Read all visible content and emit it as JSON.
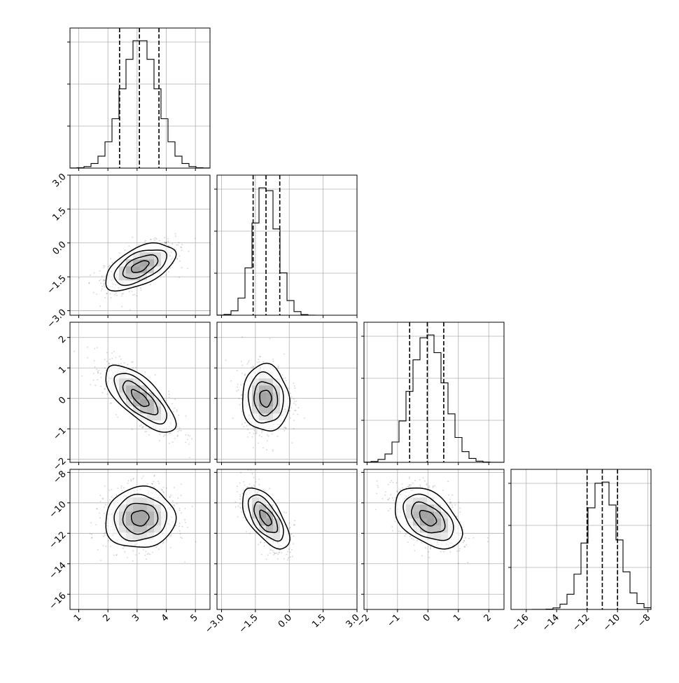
{
  "chart_data": {
    "type": "corner",
    "grid": true,
    "dimensions": [
      {
        "range": [
          0.7,
          5.5
        ],
        "ticks": [
          1,
          2,
          3,
          4,
          5
        ],
        "tick_labels": [
          "1",
          "2",
          "3",
          "4",
          "5"
        ],
        "mean": 3.1,
        "sd": 0.6,
        "quantiles": [
          2.4,
          3.08,
          3.75
        ]
      },
      {
        "range": [
          -3.2,
          3.0
        ],
        "ticks": [
          -3.0,
          -1.5,
          0.0,
          1.5,
          3.0
        ],
        "tick_labels": [
          "−3.0",
          "−1.5",
          "0.0",
          "1.5",
          "3.0"
        ],
        "mean": -1.05,
        "sd": 0.52,
        "quantiles": [
          -1.6,
          -1.03,
          -0.42
        ]
      },
      {
        "range": [
          -2.1,
          2.5
        ],
        "ticks": [
          -2,
          -1,
          0,
          1,
          2
        ],
        "tick_labels": [
          "−2",
          "−1",
          "0",
          "1",
          "2"
        ],
        "mean": 0.0,
        "sd": 0.55,
        "quantiles": [
          -0.6,
          -0.02,
          0.52
        ]
      },
      {
        "range": [
          -17,
          -7.8
        ],
        "ticks": [
          -16,
          -14,
          -12,
          -10,
          -8
        ],
        "tick_labels": [
          "−16",
          "−14",
          "−12",
          "−10",
          "−8"
        ],
        "mean": -11.0,
        "sd": 1.0,
        "quantiles": [
          -12.0,
          -11.0,
          -10.0
        ]
      }
    ],
    "correlations": [
      {
        "i": 1,
        "j": 0,
        "rho": 0.55
      },
      {
        "i": 2,
        "j": 0,
        "rho": -0.72
      },
      {
        "i": 2,
        "j": 1,
        "rho": -0.05
      },
      {
        "i": 3,
        "j": 0,
        "rho": 0.05
      },
      {
        "i": 3,
        "j": 1,
        "rho": -0.62
      },
      {
        "i": 3,
        "j": 2,
        "rho": -0.45
      }
    ],
    "contour_levels_sigma": [
      0.5,
      1.0,
      1.5,
      2.0
    ]
  }
}
